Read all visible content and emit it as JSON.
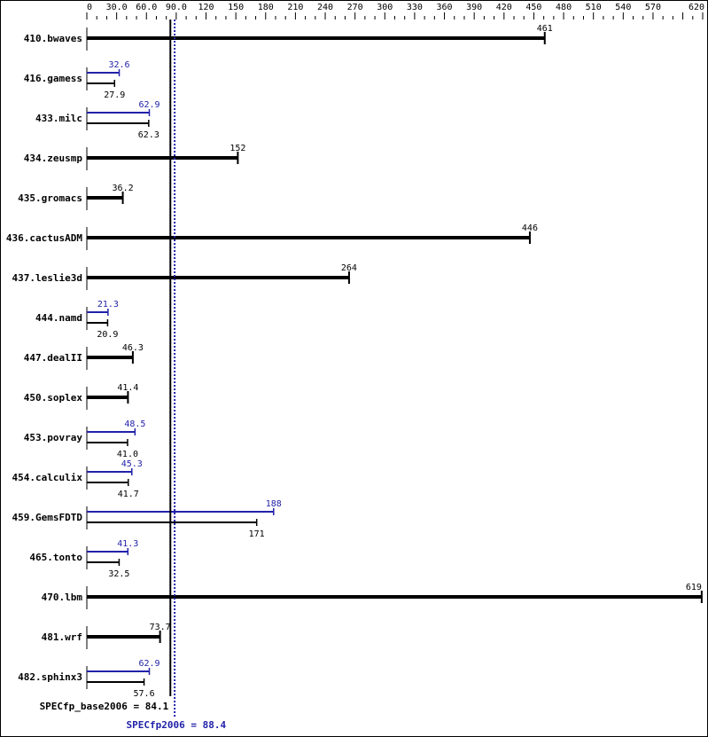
{
  "chart_data": {
    "type": "bar",
    "orientation": "horizontal",
    "xlim": [
      0,
      620
    ],
    "x_ticks_labeled": [
      "0",
      "30.0",
      "60.0",
      "90.0",
      "120",
      "150",
      "180",
      "210",
      "240",
      "270",
      "300",
      "330",
      "360",
      "390",
      "420",
      "450",
      "480",
      "510",
      "540",
      "570",
      "620"
    ],
    "x_tick_values": [
      0,
      30,
      60,
      90,
      120,
      150,
      180,
      210,
      240,
      270,
      300,
      330,
      360,
      390,
      420,
      450,
      480,
      510,
      540,
      570,
      620
    ],
    "categories": [
      "410.bwaves",
      "416.gamess",
      "433.milc",
      "434.zeusmp",
      "435.gromacs",
      "436.cactusADM",
      "437.leslie3d",
      "444.namd",
      "447.dealII",
      "450.soplex",
      "453.povray",
      "454.calculix",
      "459.GemsFDTD",
      "465.tonto",
      "470.lbm",
      "481.wrf",
      "482.sphinx3"
    ],
    "series": [
      {
        "name": "SPECfp_base2006",
        "color": "#000000",
        "values": [
          461,
          27.9,
          62.3,
          152,
          36.2,
          446,
          264,
          20.9,
          46.3,
          41.4,
          41.0,
          41.7,
          171,
          32.5,
          619,
          73.7,
          57.6
        ],
        "labels": [
          "461",
          "27.9",
          "62.3",
          "152",
          "36.2",
          "446",
          "264",
          "20.9",
          "46.3",
          "41.4",
          "41.0",
          "41.7",
          "171",
          "32.5",
          "619",
          "73.7",
          "57.6"
        ]
      },
      {
        "name": "SPECfp2006",
        "color": "#2222aa",
        "values": [
          null,
          32.6,
          62.9,
          null,
          null,
          null,
          null,
          21.3,
          null,
          null,
          48.5,
          45.3,
          188,
          41.3,
          null,
          null,
          62.9
        ],
        "labels": [
          "",
          "32.6",
          "62.9",
          "",
          "",
          "",
          "",
          "21.3",
          "",
          "",
          "48.5",
          "45.3",
          "188",
          "41.3",
          "",
          "",
          "62.9"
        ]
      }
    ],
    "reference_lines": [
      {
        "label": "SPECfp_base2006 = 84.1",
        "value": 84.1,
        "color": "#000000",
        "style": "solid"
      },
      {
        "label": "SPECfp2006 = 88.4",
        "value": 88.4,
        "color": "#2222aa",
        "style": "dotted"
      }
    ]
  }
}
